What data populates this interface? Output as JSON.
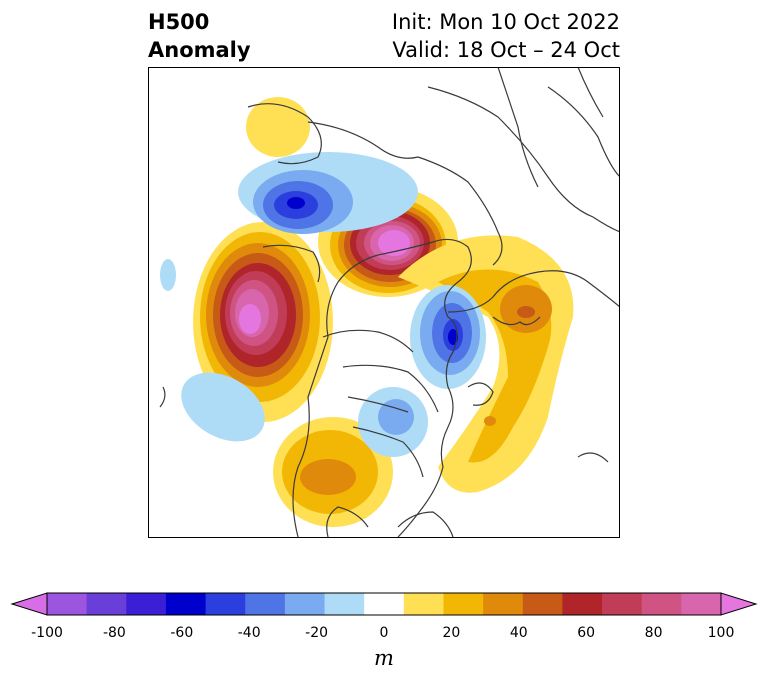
{
  "header": {
    "title_line1": "H500",
    "title_line2": "Anomaly",
    "init_text": "Init: Mon 10 Oct 2022",
    "valid_text": "Valid: 18 Oct – 24 Oct"
  },
  "colorbar": {
    "unit": "m",
    "ticks": [
      "-100",
      "-80",
      "-60",
      "-40",
      "-20",
      "0",
      "20",
      "40",
      "60",
      "80",
      "100"
    ],
    "colors": [
      "#d86ee6",
      "#9b55df",
      "#6a3fd9",
      "#3a1fd6",
      "#0000cc",
      "#2a3fdd",
      "#4f74e6",
      "#7aabf0",
      "#aedcf7",
      "#ffffff",
      "#ffe054",
      "#f2b705",
      "#e08a0c",
      "#c65a16",
      "#b0252a",
      "#c03c57",
      "#cf5483",
      "#d866ad",
      "#e676df"
    ]
  },
  "map": {
    "colors": {
      "pos_light": "#ffe054",
      "pos_mid": "#f2b705",
      "pos_orange": "#e08a0c",
      "pos_dark": "#c65a16",
      "pos_red": "#b0252a",
      "pos_rose": "#c03c57",
      "pos_pink": "#cf5483",
      "pos_magenta": "#d866ad",
      "pos_violet": "#e676df",
      "neg_light": "#aedcf7",
      "neg_mid": "#7aabf0",
      "neg_blue": "#4f74e6",
      "neg_dark": "#2a3fdd",
      "neg_navy": "#0000cc"
    }
  }
}
